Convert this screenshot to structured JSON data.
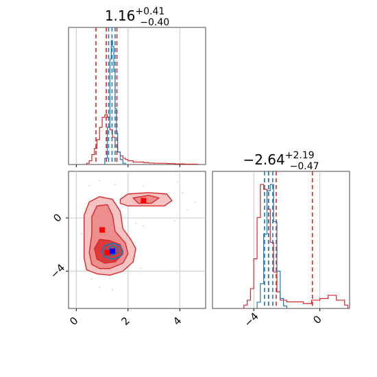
{
  "chart_data": [
    {
      "type": "histogram",
      "panel": "top-left marginal",
      "title": {
        "value": "1.16",
        "plus": "+0.41",
        "minus": "−0.40"
      },
      "xlim": [
        -0.3,
        5.0
      ],
      "x_ticks": [
        0,
        2,
        4
      ],
      "grid": true,
      "series": [
        {
          "color": "#d62728",
          "style": "step",
          "bins": [
            [
              0.4,
              0.01
            ],
            [
              0.5,
              0.03
            ],
            [
              0.6,
              0.08
            ],
            [
              0.7,
              0.13
            ],
            [
              0.8,
              0.2
            ],
            [
              0.9,
              0.3
            ],
            [
              1.0,
              0.38
            ],
            [
              1.1,
              0.4
            ],
            [
              1.2,
              0.38
            ],
            [
              1.3,
              0.28
            ],
            [
              1.4,
              0.22
            ],
            [
              1.5,
              0.15
            ],
            [
              1.6,
              0.1
            ],
            [
              1.7,
              0.07
            ],
            [
              1.8,
              0.05
            ],
            [
              1.9,
              0.04
            ],
            [
              2.0,
              0.03
            ],
            [
              2.2,
              0.02
            ],
            [
              2.4,
              0.02
            ],
            [
              2.6,
              0.015
            ],
            [
              2.8,
              0.012
            ],
            [
              3.0,
              0.01
            ],
            [
              3.2,
              0.01
            ],
            [
              3.5,
              0.008
            ],
            [
              3.8,
              0.005
            ],
            [
              4.2,
              0.003
            ],
            [
              4.6,
              0.002
            ]
          ],
          "quantile_lines": [
            0.76,
            1.16,
            1.57
          ]
        },
        {
          "color": "#1f77b4",
          "style": "step",
          "bins": [
            [
              1.1,
              0.05
            ],
            [
              1.2,
              0.3
            ],
            [
              1.3,
              0.85
            ],
            [
              1.35,
              1.0
            ],
            [
              1.4,
              0.95
            ],
            [
              1.45,
              0.75
            ],
            [
              1.5,
              0.45
            ],
            [
              1.55,
              0.25
            ],
            [
              1.6,
              0.1
            ],
            [
              1.7,
              0.04
            ],
            [
              1.8,
              0.01
            ]
          ],
          "quantile_lines": [
            1.25,
            1.38,
            1.5
          ]
        }
      ]
    },
    {
      "type": "histogram",
      "panel": "bottom-right marginal",
      "title": {
        "value": "−2.64",
        "plus": "+2.19",
        "minus": "−0.47"
      },
      "xlim": [
        -6.5,
        1.8
      ],
      "x_ticks": [
        -4,
        0
      ],
      "x_tick_labels": [
        "−4",
        "0"
      ],
      "grid": true,
      "series": [
        {
          "color": "#d62728",
          "style": "step",
          "bins": [
            [
              -4.6,
              0.02
            ],
            [
              -4.4,
              0.05
            ],
            [
              -4.2,
              0.12
            ],
            [
              -4.0,
              0.3
            ],
            [
              -3.8,
              0.55
            ],
            [
              -3.6,
              0.75
            ],
            [
              -3.4,
              0.72
            ],
            [
              -3.2,
              0.6
            ],
            [
              -3.0,
              0.4
            ],
            [
              -2.8,
              0.22
            ],
            [
              -2.6,
              0.1
            ],
            [
              -2.4,
              0.05
            ],
            [
              -2.0,
              0.04
            ],
            [
              -1.5,
              0.04
            ],
            [
              -1.0,
              0.03
            ],
            [
              -0.5,
              0.05
            ],
            [
              0.0,
              0.06
            ],
            [
              0.5,
              0.08
            ],
            [
              1.0,
              0.05
            ],
            [
              1.5,
              0.02
            ]
          ],
          "quantile_lines": [
            -3.11,
            -2.64,
            -0.45
          ]
        },
        {
          "color": "#1f77b4",
          "style": "step",
          "bins": [
            [
              -3.8,
              0.05
            ],
            [
              -3.6,
              0.2
            ],
            [
              -3.4,
              0.6
            ],
            [
              -3.2,
              0.95
            ],
            [
              -3.0,
              1.0
            ],
            [
              -2.8,
              0.7
            ],
            [
              -2.6,
              0.3
            ],
            [
              -2.4,
              0.08
            ],
            [
              -2.2,
              0.02
            ]
          ],
          "quantile_lines": [
            -3.35,
            -3.1,
            -2.85
          ]
        }
      ]
    },
    {
      "type": "contour",
      "panel": "bottom-left 2D",
      "xlim": [
        -0.3,
        5.0
      ],
      "ylim": [
        -6.8,
        3.5
      ],
      "x_ticks": [
        0,
        2,
        4
      ],
      "y_ticks": [
        0,
        -4
      ],
      "y_tick_labels": [
        "0",
        "−4"
      ],
      "grid": true,
      "markers": [
        {
          "color": "#ff0000",
          "shape": "square",
          "x": 2.6,
          "y": 1.3
        },
        {
          "color": "#ff0000",
          "shape": "square",
          "x": 1.0,
          "y": -0.9
        },
        {
          "color": "#ff0000",
          "shape": "square",
          "x": 1.2,
          "y": -2.6
        },
        {
          "color": "#0000ff",
          "shape": "square",
          "x": 1.4,
          "y": -2.5
        }
      ],
      "series": [
        {
          "color": "#d62728",
          "name_hidden": true,
          "levels": [
            [
              [
                0.4,
                -3.9
              ],
              [
                0.3,
                -3.0
              ],
              [
                0.3,
                -1.5
              ],
              [
                0.3,
                0.2
              ],
              [
                0.5,
                1.2
              ],
              [
                0.9,
                1.6
              ],
              [
                1.4,
                1.4
              ],
              [
                1.7,
                0.5
              ],
              [
                1.8,
                -0.8
              ],
              [
                2.1,
                -1.6
              ],
              [
                2.3,
                -2.3
              ],
              [
                2.2,
                -3.3
              ],
              [
                1.8,
                -4.0
              ],
              [
                1.3,
                -4.3
              ],
              [
                0.8,
                -4.2
              ]
            ],
            [
              [
                0.6,
                -3.5
              ],
              [
                0.5,
                -2.6
              ],
              [
                0.6,
                -1.2
              ],
              [
                0.6,
                0.1
              ],
              [
                0.8,
                0.9
              ],
              [
                1.2,
                1.0
              ],
              [
                1.4,
                0.2
              ],
              [
                1.5,
                -1.0
              ],
              [
                1.9,
                -1.9
              ],
              [
                2.0,
                -2.7
              ],
              [
                1.8,
                -3.4
              ],
              [
                1.3,
                -3.8
              ],
              [
                0.9,
                -3.8
              ]
            ],
            [
              [
                0.8,
                -3.1
              ],
              [
                0.7,
                -2.3
              ],
              [
                0.9,
                -1.6
              ],
              [
                1.3,
                -1.7
              ],
              [
                1.7,
                -2.0
              ],
              [
                1.8,
                -2.7
              ],
              [
                1.5,
                -3.3
              ],
              [
                1.1,
                -3.4
              ]
            ]
          ]
        },
        {
          "color": "#d62728",
          "name_hidden": true,
          "levels": [
            [
              [
                1.7,
                1.4
              ],
              [
                2.0,
                1.8
              ],
              [
                2.8,
                1.9
              ],
              [
                3.5,
                1.8
              ],
              [
                3.7,
                1.3
              ],
              [
                3.4,
                0.9
              ],
              [
                2.6,
                0.9
              ],
              [
                2.0,
                0.9
              ],
              [
                1.7,
                1.1
              ]
            ],
            [
              [
                2.2,
                1.5
              ],
              [
                2.8,
                1.7
              ],
              [
                3.2,
                1.5
              ],
              [
                2.9,
                1.1
              ],
              [
                2.4,
                1.1
              ]
            ]
          ]
        },
        {
          "color": "#1f77b4",
          "name_hidden": true,
          "levels": [
            [
              [
                1.0,
                -2.5
              ],
              [
                1.1,
                -2.1
              ],
              [
                1.4,
                -1.9
              ],
              [
                1.7,
                -2.1
              ],
              [
                1.8,
                -2.5
              ],
              [
                1.7,
                -2.9
              ],
              [
                1.4,
                -3.1
              ],
              [
                1.1,
                -2.9
              ]
            ],
            [
              [
                1.2,
                -2.5
              ],
              [
                1.3,
                -2.2
              ],
              [
                1.4,
                -2.1
              ],
              [
                1.6,
                -2.3
              ],
              [
                1.6,
                -2.6
              ],
              [
                1.4,
                -2.8
              ],
              [
                1.3,
                -2.8
              ]
            ]
          ]
        }
      ]
    }
  ]
}
